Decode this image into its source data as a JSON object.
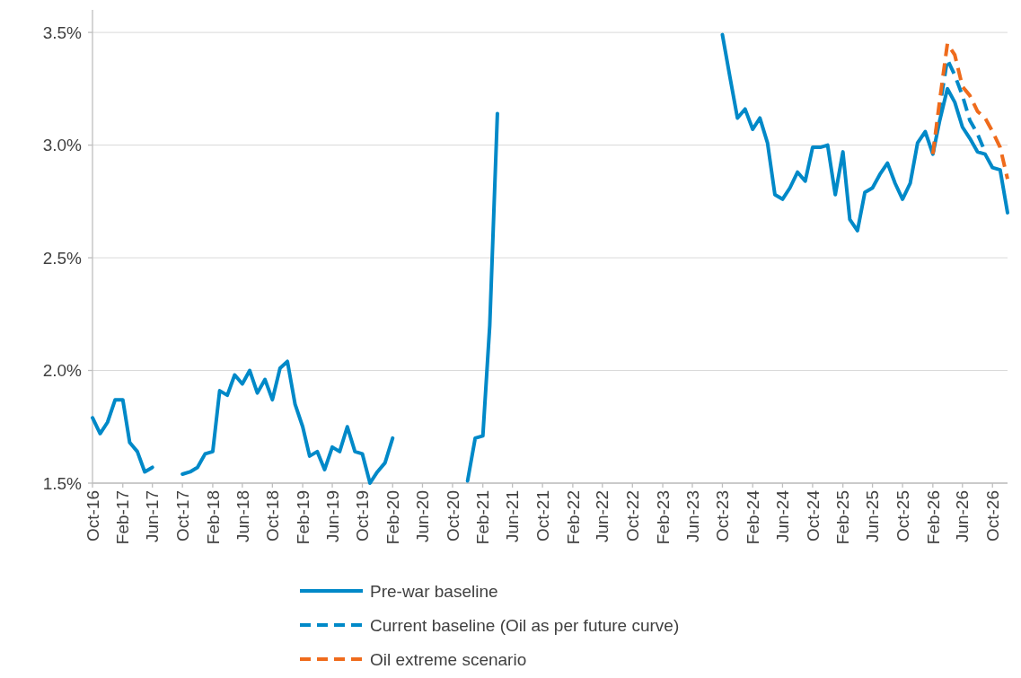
{
  "chart_data": {
    "type": "line",
    "legend": "bottom",
    "grid": "y",
    "xlim": [
      "2016-10",
      "2026-12"
    ],
    "ylim": [
      1.5,
      3.6
    ],
    "xticks": [
      {
        "value": "2016-10",
        "label": "Oct-16"
      },
      {
        "value": "2017-02",
        "label": "Feb-17"
      },
      {
        "value": "2017-06",
        "label": "Jun-17"
      },
      {
        "value": "2017-10",
        "label": "Oct-17"
      },
      {
        "value": "2018-02",
        "label": "Feb-18"
      },
      {
        "value": "2018-06",
        "label": "Jun-18"
      },
      {
        "value": "2018-10",
        "label": "Oct-18"
      },
      {
        "value": "2019-02",
        "label": "Feb-19"
      },
      {
        "value": "2019-06",
        "label": "Jun-19"
      },
      {
        "value": "2019-10",
        "label": "Oct-19"
      },
      {
        "value": "2020-02",
        "label": "Feb-20"
      },
      {
        "value": "2020-06",
        "label": "Jun-20"
      },
      {
        "value": "2020-10",
        "label": "Oct-20"
      },
      {
        "value": "2021-02",
        "label": "Feb-21"
      },
      {
        "value": "2021-06",
        "label": "Jun-21"
      },
      {
        "value": "2021-10",
        "label": "Oct-21"
      },
      {
        "value": "2022-02",
        "label": "Feb-22"
      },
      {
        "value": "2022-06",
        "label": "Jun-22"
      },
      {
        "value": "2022-10",
        "label": "Oct-22"
      },
      {
        "value": "2023-02",
        "label": "Feb-23"
      },
      {
        "value": "2023-06",
        "label": "Jun-23"
      },
      {
        "value": "2023-10",
        "label": "Oct-23"
      },
      {
        "value": "2024-02",
        "label": "Feb-24"
      },
      {
        "value": "2024-06",
        "label": "Jun-24"
      },
      {
        "value": "2024-10",
        "label": "Oct-24"
      },
      {
        "value": "2025-02",
        "label": "Feb-25"
      },
      {
        "value": "2025-06",
        "label": "Jun-25"
      },
      {
        "value": "2025-10",
        "label": "Oct-25"
      },
      {
        "value": "2026-02",
        "label": "Feb-26"
      },
      {
        "value": "2026-06",
        "label": "Jun-26"
      },
      {
        "value": "2026-10",
        "label": "Oct-26"
      }
    ],
    "yticks": [
      {
        "value": 1.5,
        "label": "1.5%"
      },
      {
        "value": 2.0,
        "label": "2.0%"
      },
      {
        "value": 2.5,
        "label": "2.5%"
      },
      {
        "value": 3.0,
        "label": "3.0%"
      },
      {
        "value": 3.5,
        "label": "3.5%"
      }
    ],
    "x": [
      "2016-10",
      "2016-11",
      "2016-12",
      "2017-01",
      "2017-02",
      "2017-03",
      "2017-04",
      "2017-05",
      "2017-06",
      "2017-07",
      "2017-08",
      "2017-09",
      "2017-10",
      "2017-11",
      "2017-12",
      "2018-01",
      "2018-02",
      "2018-03",
      "2018-04",
      "2018-05",
      "2018-06",
      "2018-07",
      "2018-08",
      "2018-09",
      "2018-10",
      "2018-11",
      "2018-12",
      "2019-01",
      "2019-02",
      "2019-03",
      "2019-04",
      "2019-05",
      "2019-06",
      "2019-07",
      "2019-08",
      "2019-09",
      "2019-10",
      "2019-11",
      "2019-12",
      "2020-01",
      "2020-02",
      "2020-03",
      "2020-04",
      "2020-05",
      "2020-06",
      "2020-07",
      "2020-08",
      "2020-09",
      "2020-10",
      "2020-11",
      "2020-12",
      "2021-01",
      "2021-02",
      "2021-03",
      "2021-04",
      "2021-05",
      "2021-06",
      "2021-07",
      "2021-08",
      "2021-09",
      "2021-10",
      "2021-11",
      "2021-12",
      "2022-01",
      "2022-02",
      "2022-03",
      "2022-04",
      "2022-05",
      "2022-06",
      "2022-07",
      "2022-08",
      "2022-09",
      "2022-10",
      "2022-11",
      "2022-12",
      "2023-01",
      "2023-02",
      "2023-03",
      "2023-04",
      "2023-05",
      "2023-06",
      "2023-07",
      "2023-08",
      "2023-09",
      "2023-10",
      "2023-11",
      "2023-12",
      "2024-01",
      "2024-02",
      "2024-03",
      "2024-04",
      "2024-05",
      "2024-06",
      "2024-07",
      "2024-08",
      "2024-09",
      "2024-10",
      "2024-11",
      "2024-12",
      "2025-01",
      "2025-02",
      "2025-03",
      "2025-04",
      "2025-05",
      "2025-06",
      "2025-07",
      "2025-08",
      "2025-09",
      "2025-10",
      "2025-11",
      "2025-12",
      "2026-01",
      "2026-02",
      "2026-03",
      "2026-04",
      "2026-05",
      "2026-06",
      "2026-07",
      "2026-08",
      "2026-09",
      "2026-10",
      "2026-11",
      "2026-12"
    ],
    "series": [
      {
        "name": "Pre-war baseline",
        "color": "#0089c8",
        "line_style": "solid",
        "values": [
          1.79,
          1.72,
          1.77,
          1.87,
          1.87,
          1.68,
          1.64,
          1.55,
          1.57,
          null,
          null,
          null,
          1.54,
          1.55,
          1.57,
          1.63,
          1.64,
          1.91,
          1.89,
          1.98,
          1.94,
          2.0,
          1.9,
          1.96,
          1.87,
          2.01,
          2.04,
          1.85,
          1.75,
          1.62,
          1.64,
          1.56,
          1.66,
          1.64,
          1.75,
          1.64,
          1.63,
          1.5,
          1.55,
          1.59,
          1.7,
          null,
          null,
          null,
          null,
          null,
          null,
          null,
          null,
          null,
          1.51,
          1.7,
          1.71,
          2.2,
          3.14,
          null,
          null,
          null,
          null,
          null,
          null,
          null,
          null,
          null,
          null,
          null,
          null,
          null,
          null,
          null,
          null,
          null,
          null,
          null,
          null,
          null,
          null,
          null,
          null,
          null,
          null,
          null,
          null,
          null,
          3.49,
          3.3,
          3.12,
          3.16,
          3.07,
          3.12,
          3.01,
          2.78,
          2.76,
          2.81,
          2.88,
          2.84,
          2.99,
          2.99,
          3.0,
          2.78,
          2.97,
          2.67,
          2.62,
          2.79,
          2.81,
          2.87,
          2.92,
          2.83,
          2.76,
          2.83,
          3.01,
          3.06,
          2.96,
          3.11,
          3.25,
          3.19,
          3.08,
          3.03,
          2.97,
          2.96,
          2.9,
          2.89,
          2.7
        ]
      },
      {
        "name": "Current baseline (Oil as per future curve)",
        "color": "#0089c8",
        "line_style": "dashed",
        "x": [
          "2026-02",
          "2026-03",
          "2026-04",
          "2026-05",
          "2026-06",
          "2026-07",
          "2026-08",
          "2026-09"
        ],
        "values": [
          2.96,
          3.17,
          3.38,
          3.31,
          3.22,
          3.11,
          3.05,
          2.97
        ]
      },
      {
        "name": "Oil extreme scenario",
        "color": "#ef6b1c",
        "line_style": "dashed",
        "x": [
          "2026-02",
          "2026-03",
          "2026-04",
          "2026-05",
          "2026-06",
          "2026-07",
          "2026-08",
          "2026-09",
          "2026-10",
          "2026-11",
          "2026-12"
        ],
        "values": [
          2.96,
          3.2,
          3.45,
          3.4,
          3.26,
          3.22,
          3.15,
          3.12,
          3.06,
          2.99,
          2.85
        ]
      }
    ]
  }
}
